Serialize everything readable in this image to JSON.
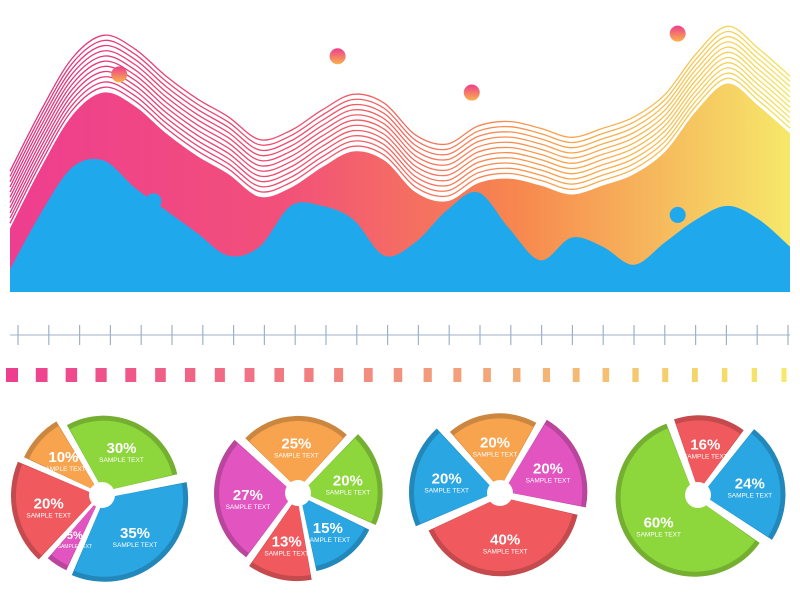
{
  "colors": {
    "pink": "#ee3e8f",
    "magenta": "#e254c0",
    "orange": "#f8a44e",
    "coral": "#f05a5e",
    "yellow": "#f6e86a",
    "blue": "#2aa6e3",
    "green": "#8dd63c",
    "axis": "#9fb2c8"
  },
  "chart_data": [
    {
      "type": "area",
      "x": [
        0,
        1,
        2,
        3,
        4,
        5,
        6,
        7,
        8,
        9,
        10,
        11,
        12,
        13,
        14,
        15,
        16,
        17,
        18,
        19,
        20,
        21,
        22,
        23,
        24,
        25
      ],
      "series": [
        {
          "values": [
            28,
            55,
            78,
            88,
            82,
            70,
            60,
            52,
            42,
            46,
            55,
            62,
            58,
            44,
            40,
            48,
            50,
            47,
            43,
            47,
            52,
            62,
            80,
            92,
            82,
            70
          ]
        },
        {
          "values": [
            10,
            35,
            55,
            58,
            46,
            36,
            26,
            16,
            20,
            38,
            38,
            32,
            16,
            22,
            36,
            44,
            28,
            14,
            24,
            20,
            12,
            22,
            32,
            38,
            32,
            20
          ]
        }
      ],
      "markers": [
        {
          "x": 3.5,
          "y": 96
        },
        {
          "x": 10.5,
          "y": 104
        },
        {
          "x": 14.8,
          "y": 88
        },
        {
          "x": 21.4,
          "y": 114
        },
        {
          "x": 4.6,
          "y": 40
        },
        {
          "x": 10.8,
          "y": 20
        },
        {
          "x": 21.4,
          "y": 34
        }
      ],
      "ticks": 26,
      "color_scale": 27
    },
    {
      "type": "pie",
      "slices": [
        {
          "value": 30,
          "label": "30%",
          "sub": "SAMPLE TEXT",
          "color": "#8dd63c"
        },
        {
          "value": 35,
          "label": "35%",
          "sub": "SAMPLE TEXT",
          "color": "#2aa6e3"
        },
        {
          "value": 5,
          "label": "5%",
          "sub": "SAMPLE TEXT",
          "color": "#e254c0"
        },
        {
          "value": 20,
          "label": "20%",
          "sub": "SAMPLE TEXT",
          "color": "#f05a5e"
        },
        {
          "value": 10,
          "label": "10%",
          "sub": "SAMPLE TEXT",
          "color": "#f8a44e"
        }
      ]
    },
    {
      "type": "pie",
      "slices": [
        {
          "value": 25,
          "label": "25%",
          "sub": "SAMPLE TEXT",
          "color": "#f8a44e"
        },
        {
          "value": 20,
          "label": "20%",
          "sub": "SAMPLE TEXT",
          "color": "#8dd63c"
        },
        {
          "value": 15,
          "label": "15%",
          "sub": "SAMPLE TEXT",
          "color": "#2aa6e3"
        },
        {
          "value": 13,
          "label": "13%",
          "sub": "SAMPLE TEXT",
          "color": "#f05a5e"
        },
        {
          "value": 27,
          "label": "27%",
          "sub": "SAMPLE TEXT",
          "color": "#e254c0"
        }
      ]
    },
    {
      "type": "pie",
      "slices": [
        {
          "value": 20,
          "label": "20%",
          "sub": "SAMPLE TEXT",
          "color": "#f8a44e"
        },
        {
          "value": 20,
          "label": "20%",
          "sub": "SAMPLE TEXT",
          "color": "#e254c0"
        },
        {
          "value": 40,
          "label": "40%",
          "sub": "SAMPLE TEXT",
          "color": "#f05a5e"
        },
        {
          "value": 20,
          "label": "20%",
          "sub": "SAMPLE TEXT",
          "color": "#2aa6e3"
        }
      ]
    },
    {
      "type": "pie",
      "slices": [
        {
          "value": 16,
          "label": "16%",
          "sub": "SAMPLE TEXT",
          "color": "#f05a5e"
        },
        {
          "value": 24,
          "label": "24%",
          "sub": "SAMPLE TEXT",
          "color": "#2aa6e3"
        },
        {
          "value": 60,
          "label": "60%",
          "sub": "SAMPLE TEXT",
          "color": "#8dd63c"
        }
      ]
    }
  ]
}
